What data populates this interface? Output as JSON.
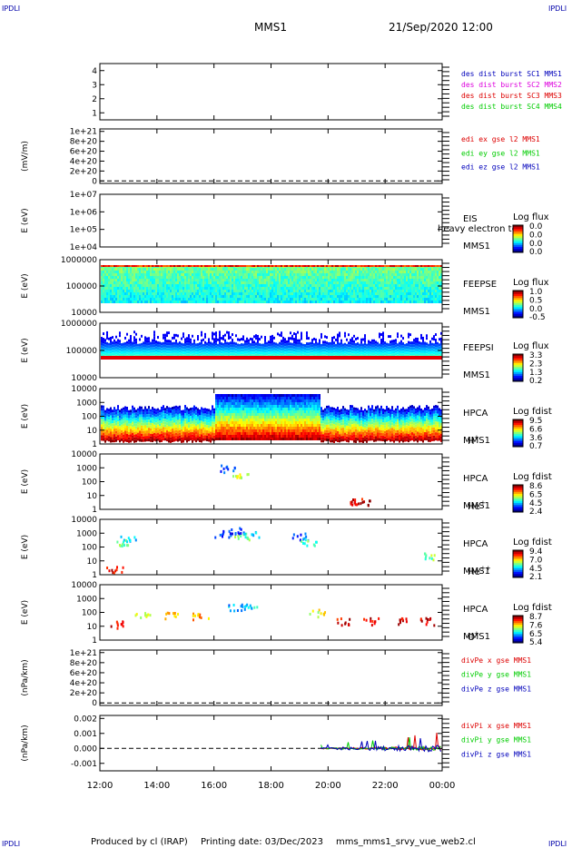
{
  "header": {
    "corner_label": "IPDLI",
    "title": "MMS1",
    "datetime": "21/Sep/2020 12:00"
  },
  "footer": {
    "produced_by": "Produced by cl (IRAP)",
    "printing_date": "Printing date: 03/Dec/2023",
    "script_name": "mms_mms1_srvy_vue_web2.cl"
  },
  "colors": {
    "cyan_label": "#00aadd",
    "magenta_label": "#dd00dd",
    "red_label": "#dd0000",
    "green_label": "#00cc00",
    "blue_label": "#0000bb"
  },
  "chart_data": [
    {
      "id": "panel-des",
      "type": "line",
      "yticks": [
        "4",
        "3",
        "2",
        "1"
      ],
      "yvalues": [
        4,
        3,
        2,
        1
      ],
      "ylim": [
        0.5,
        4.5
      ],
      "ylabel": "",
      "legend": [
        {
          "text": "des dist burst SC1 MMS1",
          "color": "#0000bb"
        },
        {
          "text": "des dist burst SC2 MMS2",
          "color": "#dd00dd"
        },
        {
          "text": "des dist burst SC3 MMS3",
          "color": "#dd0000"
        },
        {
          "text": "des dist burst SC4 MMS4",
          "color": "#00cc00"
        }
      ]
    },
    {
      "id": "panel-edi",
      "type": "line",
      "yticks": [
        "1e+21",
        "8e+20",
        "6e+20",
        "4e+20",
        "2e+20",
        "0"
      ],
      "yvalues": [
        1e+21,
        8e+20,
        6e+20,
        4e+20,
        2e+20,
        0
      ],
      "ylim": [
        -5e+19,
        1.05e+21
      ],
      "ylabel": "(mV/m)",
      "zero_line": true,
      "legend": [
        {
          "text": "edi ex gse l2 MMS1",
          "color": "#dd0000"
        },
        {
          "text": "edi ey gse l2 MMS1",
          "color": "#00cc00"
        },
        {
          "text": "edi ez gse l2 MMS1",
          "color": "#0000bb"
        }
      ]
    },
    {
      "id": "panel-eis",
      "type": "heatmap",
      "yticks": [
        "1e+07",
        "1e+06",
        "1e+05",
        "1e+04"
      ],
      "ylabel": "E (eV)",
      "log_y": true,
      "instrument": [
        "EIS",
        "MMS1"
      ],
      "overlay_text": "heavy electron to",
      "colorbar": {
        "title": "Log flux",
        "ticks": [
          "0.0",
          "0.0",
          "0.0",
          "0.0"
        ]
      },
      "coverage": "none"
    },
    {
      "id": "panel-feepse",
      "type": "heatmap",
      "yticks": [
        "1000000",
        "100000",
        "10000"
      ],
      "ylabel": "E (eV)",
      "log_y": true,
      "instrument": [
        "FEEPSE",
        "MMS1"
      ],
      "colorbar": {
        "title": "Log flux",
        "ticks": [
          "1.0",
          "0.5",
          "0.0",
          "-0.5"
        ]
      },
      "coverage": "full"
    },
    {
      "id": "panel-feepsi",
      "type": "heatmap",
      "yticks": [
        "1000000",
        "100000",
        "10000"
      ],
      "ylabel": "E (eV)",
      "log_y": true,
      "instrument": [
        "FEEPSI",
        "MMS1"
      ],
      "colorbar": {
        "title": "Log flux",
        "ticks": [
          "3.3",
          "2.3",
          "1.3",
          "0.2"
        ]
      },
      "coverage": "full"
    },
    {
      "id": "panel-hpca-h",
      "type": "heatmap",
      "yticks": [
        "10000",
        "1000",
        "100",
        "10",
        "1"
      ],
      "ylabel": "E (eV)",
      "log_y": true,
      "instrument": [
        "HPCA",
        "MMS1"
      ],
      "species": "H",
      "charge": "+",
      "colorbar": {
        "title": "Log fdist",
        "ticks": [
          "9.5",
          "6.6",
          "3.6",
          "0.7"
        ]
      },
      "coverage": "full"
    },
    {
      "id": "panel-hpca-he",
      "type": "heatmap",
      "yticks": [
        "10000",
        "1000",
        "100",
        "10",
        "1"
      ],
      "ylabel": "E (eV)",
      "log_y": true,
      "instrument": [
        "HPCA",
        "MMS1"
      ],
      "species": "He",
      "charge": "+",
      "colorbar": {
        "title": "Log fdist",
        "ticks": [
          "8.6",
          "6.5",
          "4.5",
          "2.4"
        ]
      },
      "coverage": "sparse"
    },
    {
      "id": "panel-hpca-he2",
      "type": "heatmap",
      "yticks": [
        "10000",
        "1000",
        "100",
        "10",
        "1"
      ],
      "ylabel": "E (eV)",
      "log_y": true,
      "instrument": [
        "HPCA",
        "MMS1"
      ],
      "species": "He",
      "charge": "++",
      "colorbar": {
        "title": "Log fdist",
        "ticks": [
          "9.4",
          "7.0",
          "4.5",
          "2.1"
        ]
      },
      "coverage": "sparse"
    },
    {
      "id": "panel-hpca-o",
      "type": "heatmap",
      "yticks": [
        "10000",
        "1000",
        "100",
        "10",
        "1"
      ],
      "ylabel": "E (eV)",
      "log_y": true,
      "instrument": [
        "HPCA",
        "MMS1"
      ],
      "species": "O",
      "charge": "+",
      "colorbar": {
        "title": "Log fdist",
        "ticks": [
          "8.7",
          "7.6",
          "6.5",
          "5.4"
        ]
      },
      "coverage": "sparse"
    },
    {
      "id": "panel-divpe",
      "type": "line",
      "yticks": [
        "1e+21",
        "8e+20",
        "6e+20",
        "4e+20",
        "2e+20",
        "0"
      ],
      "yvalues": [
        1e+21,
        8e+20,
        6e+20,
        4e+20,
        2e+20,
        0
      ],
      "ylim": [
        -5e+19,
        1.05e+21
      ],
      "ylabel": "(nPa/km)",
      "zero_line": true,
      "legend": [
        {
          "text": "divPe x gse MMS1",
          "color": "#dd0000"
        },
        {
          "text": "divPe y gse MMS1",
          "color": "#00cc00"
        },
        {
          "text": "divPe z gse MMS1",
          "color": "#0000bb"
        }
      ]
    },
    {
      "id": "panel-divpi",
      "type": "line",
      "yticks": [
        "0.002",
        "0.001",
        "0.000",
        "-0.001"
      ],
      "yvalues": [
        0.002,
        0.001,
        0.0,
        -0.001
      ],
      "ylim": [
        -0.0015,
        0.0022
      ],
      "ylabel": "(nPa/km)",
      "zero_line": true,
      "series_start_hour": 19.75,
      "series_end_hour": 24.0,
      "legend": [
        {
          "text": "divPi x gse MMS1",
          "color": "#dd0000"
        },
        {
          "text": "divPi y gse MMS1",
          "color": "#00cc00"
        },
        {
          "text": "divPi z gse MMS1",
          "color": "#0000bb"
        }
      ]
    }
  ],
  "x_axis": {
    "ticks": [
      "12:00",
      "14:00",
      "16:00",
      "18:00",
      "20:00",
      "22:00",
      "00:00"
    ],
    "hours": [
      12,
      14,
      16,
      18,
      20,
      22,
      24
    ],
    "range": [
      12,
      24
    ]
  }
}
